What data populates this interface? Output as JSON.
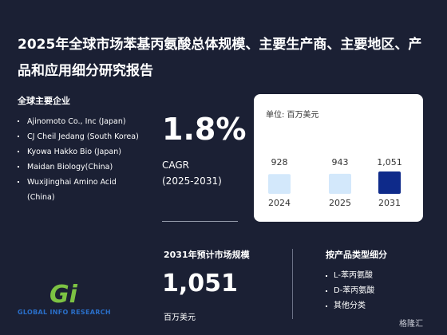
{
  "header": {
    "title": "2025年全球市场苯基丙氨酸总体规模、主要生产商、主要地区、产品和应用细分研究报告"
  },
  "companies": {
    "heading": "全球主要企业",
    "items": [
      "Ajinomoto Co., Inc (Japan)",
      "CJ Cheil Jedang (South Korea)",
      "Kyowa Hakko Bio (Japan)",
      "Maidan Biology(China)",
      "WuxiJinghai Amino Acid (China)"
    ]
  },
  "cagr": {
    "value": "1.8%",
    "label": "CAGR",
    "period": "(2025-2031)"
  },
  "chart_data": {
    "type": "bar",
    "unit": "单位: 百万美元",
    "categories": [
      "2024",
      "2025",
      "2031"
    ],
    "values": [
      928,
      943,
      1051
    ],
    "value_labels": [
      "928",
      "943",
      "1,051"
    ],
    "colors": [
      "#d3e8fb",
      "#d3e8fb",
      "#0e2a8a"
    ]
  },
  "market": {
    "heading": "2031年预计市场规模",
    "unit": "百万美元"
  },
  "segments": {
    "heading": "按产品类型细分",
    "items": [
      "L-苯丙氨酸",
      "D-苯丙氨酸",
      "其他分类"
    ]
  },
  "logo": {
    "mark": "Gi",
    "text": "GLOBAL INFO RESEARCH"
  },
  "watermark": "格隆汇"
}
